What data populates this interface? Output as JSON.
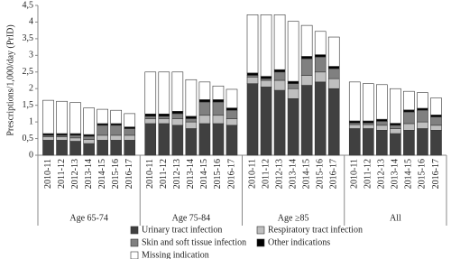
{
  "chart_data": {
    "type": "stacked-bar",
    "y_label": "Prescriptions/1,000/day (PrID)",
    "ylim": [
      0,
      4.5
    ],
    "yticks": [
      0,
      {
        "value": 0.5,
        "label": "0,5"
      },
      1,
      {
        "value": 1.5,
        "label": "1,5"
      },
      2,
      {
        "value": 2.5,
        "label": "2,5"
      },
      3,
      {
        "value": 3.5,
        "label": "3,5"
      },
      4,
      {
        "value": 4.5,
        "label": "4,5"
      }
    ],
    "groups": [
      "Age 65-74",
      "Age 75-84",
      "Age ≥85",
      "All"
    ],
    "categories": [
      "2010-11",
      "2011-12",
      "2012-13",
      "2013-14",
      "2014-15",
      "2015-16",
      "2016-17",
      "2010-11",
      "2011-12",
      "2012-13",
      "2013-14",
      "2014-15",
      "2015-16",
      "2016-17",
      "2010-11",
      "2011-12",
      "2012-13",
      "2013-14",
      "2014-15",
      "2015-16",
      "2016-17",
      "2010-11",
      "2011-12",
      "2012-13",
      "2013-14",
      "2014-15",
      "2015-16",
      "2016-17"
    ],
    "series": [
      {
        "name": "Urinary tract infection",
        "color": "#404040",
        "values": [
          0.45,
          0.45,
          0.42,
          0.35,
          0.45,
          0.45,
          0.45,
          0.95,
          0.95,
          0.9,
          0.8,
          0.95,
          0.95,
          0.9,
          2.15,
          2.05,
          1.95,
          1.7,
          2.1,
          2.2,
          2.0,
          0.8,
          0.8,
          0.75,
          0.65,
          0.75,
          0.8,
          0.75
        ]
      },
      {
        "name": "Respiratory tract infection",
        "color": "#bfbfbf",
        "values": [
          0.1,
          0.1,
          0.1,
          0.12,
          0.15,
          0.15,
          0.15,
          0.15,
          0.15,
          0.2,
          0.2,
          0.25,
          0.25,
          0.2,
          0.2,
          0.2,
          0.3,
          0.3,
          0.3,
          0.3,
          0.3,
          0.12,
          0.12,
          0.15,
          0.15,
          0.2,
          0.2,
          0.15
        ]
      },
      {
        "name": "Skin and soft tissue infection",
        "color": "#808080",
        "values": [
          0.05,
          0.05,
          0.08,
          0.1,
          0.3,
          0.3,
          0.2,
          0.07,
          0.07,
          0.15,
          0.1,
          0.4,
          0.4,
          0.25,
          0.05,
          0.05,
          0.25,
          0.15,
          0.5,
          0.45,
          0.3,
          0.05,
          0.05,
          0.12,
          0.1,
          0.35,
          0.35,
          0.25
        ]
      },
      {
        "name": "Other indications",
        "color": "#000000",
        "values": [
          0.05,
          0.05,
          0.05,
          0.05,
          0.05,
          0.05,
          0.05,
          0.07,
          0.07,
          0.07,
          0.07,
          0.07,
          0.07,
          0.07,
          0.07,
          0.07,
          0.07,
          0.07,
          0.07,
          0.07,
          0.07,
          0.06,
          0.06,
          0.06,
          0.06,
          0.06,
          0.06,
          0.06
        ]
      },
      {
        "name": "Missing indication",
        "color": "#ffffff",
        "values": [
          1.0,
          0.97,
          0.93,
          0.8,
          0.43,
          0.4,
          0.4,
          1.26,
          1.26,
          1.18,
          1.1,
          0.53,
          0.41,
          0.56,
          1.75,
          1.85,
          1.65,
          1.8,
          0.93,
          0.7,
          0.88,
          1.17,
          1.12,
          1.04,
          1.04,
          0.56,
          0.47,
          0.51
        ]
      }
    ]
  }
}
